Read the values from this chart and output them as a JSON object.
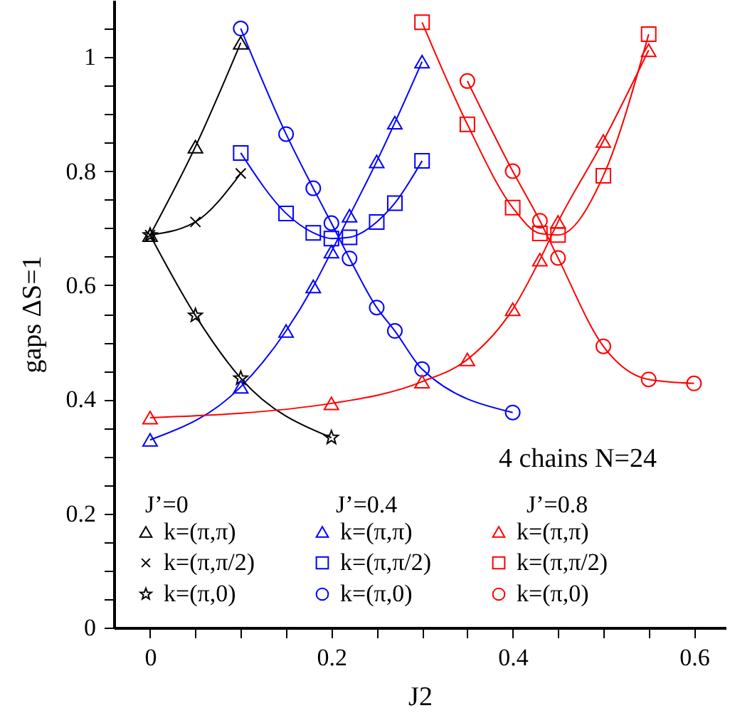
{
  "chart_data": {
    "type": "line",
    "xlabel": "J2",
    "ylabel": "gaps ΔS=1",
    "xlim": [
      -0.04,
      0.635
    ],
    "ylim": [
      0,
      1.1
    ],
    "xticks": [
      0,
      {
        "value": 0.05,
        "label": null
      },
      {
        "value": 0.1,
        "label": null
      },
      {
        "value": 0.15,
        "label": null
      },
      0.2,
      {
        "value": 0.25,
        "label": null
      },
      {
        "value": 0.3,
        "label": null
      },
      {
        "value": 0.35,
        "label": null
      },
      0.4,
      {
        "value": 0.45,
        "label": null
      },
      {
        "value": 0.5,
        "label": null
      },
      {
        "value": 0.55,
        "label": null
      },
      0.6
    ],
    "yticks": [
      0,
      {
        "value": 0.05,
        "label": null
      },
      {
        "value": 0.1,
        "label": null
      },
      {
        "value": 0.15,
        "label": null
      },
      0.2,
      {
        "value": 0.25,
        "label": null
      },
      {
        "value": 0.3,
        "label": null
      },
      {
        "value": 0.35,
        "label": null
      },
      0.4,
      {
        "value": 0.45,
        "label": null
      },
      {
        "value": 0.5,
        "label": null
      },
      {
        "value": 0.55,
        "label": null
      },
      0.6,
      {
        "value": 0.65,
        "label": null
      },
      {
        "value": 0.7,
        "label": null
      },
      {
        "value": 0.75,
        "label": null
      },
      0.8,
      {
        "value": 0.85,
        "label": null
      },
      {
        "value": 0.9,
        "label": null
      },
      {
        "value": 0.95,
        "label": null
      },
      1,
      {
        "value": 1.05,
        "label": null
      }
    ],
    "grid": false,
    "legend": "bottom left",
    "annotations": [
      "4 chains N=24",
      "J’=0",
      "J’=0.4",
      "J’=0.8"
    ],
    "series": [
      {
        "name": "k=(π,π)",
        "color": "#000000",
        "marker": "triangle",
        "x": [
          0,
          0.05,
          0.1
        ],
        "values": [
          0.688,
          0.843,
          1.025
        ]
      },
      {
        "name": "k=(π,π/2)",
        "color": "#000000",
        "marker": "cross",
        "x": [
          0,
          0.05,
          0.1
        ],
        "values": [
          0.688,
          0.711,
          0.796
        ]
      },
      {
        "name": "k=(π,0)",
        "color": "#000000",
        "marker": "star",
        "x": [
          0,
          0.05,
          0.1,
          0.2
        ],
        "values": [
          0.688,
          0.547,
          0.437,
          0.333
        ]
      },
      {
        "name": "k=(π,π)",
        "color": "#0000ff",
        "marker": "triangle",
        "x": [
          0,
          0.1,
          0.15,
          0.18,
          0.2,
          0.22,
          0.25,
          0.27,
          0.3
        ],
        "values": [
          0.329,
          0.422,
          0.52,
          0.598,
          0.659,
          0.722,
          0.817,
          0.885,
          0.992
        ]
      },
      {
        "name": "k=(π,π/2)",
        "color": "#0000ff",
        "marker": "square",
        "x": [
          0.1,
          0.15,
          0.18,
          0.2,
          0.22,
          0.25,
          0.27,
          0.3
        ],
        "values": [
          0.832,
          0.726,
          0.692,
          0.682,
          0.684,
          0.711,
          0.744,
          0.818
        ]
      },
      {
        "name": "k=(π,0)",
        "color": "#0000ff",
        "marker": "circle",
        "x": [
          0.1,
          0.15,
          0.18,
          0.2,
          0.22,
          0.25,
          0.27,
          0.3,
          0.4
        ],
        "values": [
          1.05,
          0.865,
          0.77,
          0.709,
          0.647,
          0.561,
          0.52,
          0.453,
          0.377
        ]
      },
      {
        "name": "k=(π,π)",
        "color": "#ff0000",
        "marker": "triangle",
        "x": [
          0,
          0.2,
          0.3,
          0.35,
          0.4,
          0.43,
          0.45,
          0.5,
          0.55
        ],
        "values": [
          0.368,
          0.393,
          0.431,
          0.47,
          0.558,
          0.645,
          0.711,
          0.853,
          1.012
        ]
      },
      {
        "name": "k=(π,π/2)",
        "color": "#ff0000",
        "marker": "square",
        "x": [
          0.3,
          0.35,
          0.4,
          0.43,
          0.45,
          0.5,
          0.55
        ],
        "values": [
          1.061,
          0.882,
          0.736,
          0.691,
          0.688,
          0.792,
          1.04
        ]
      },
      {
        "name": "k=(π,0)",
        "color": "#ff0000",
        "marker": "circle",
        "x": [
          0.35,
          0.4,
          0.43,
          0.45,
          0.5,
          0.55,
          0.6
        ],
        "values": [
          0.958,
          0.8,
          0.713,
          0.648,
          0.493,
          0.435,
          0.428
        ]
      }
    ]
  }
}
